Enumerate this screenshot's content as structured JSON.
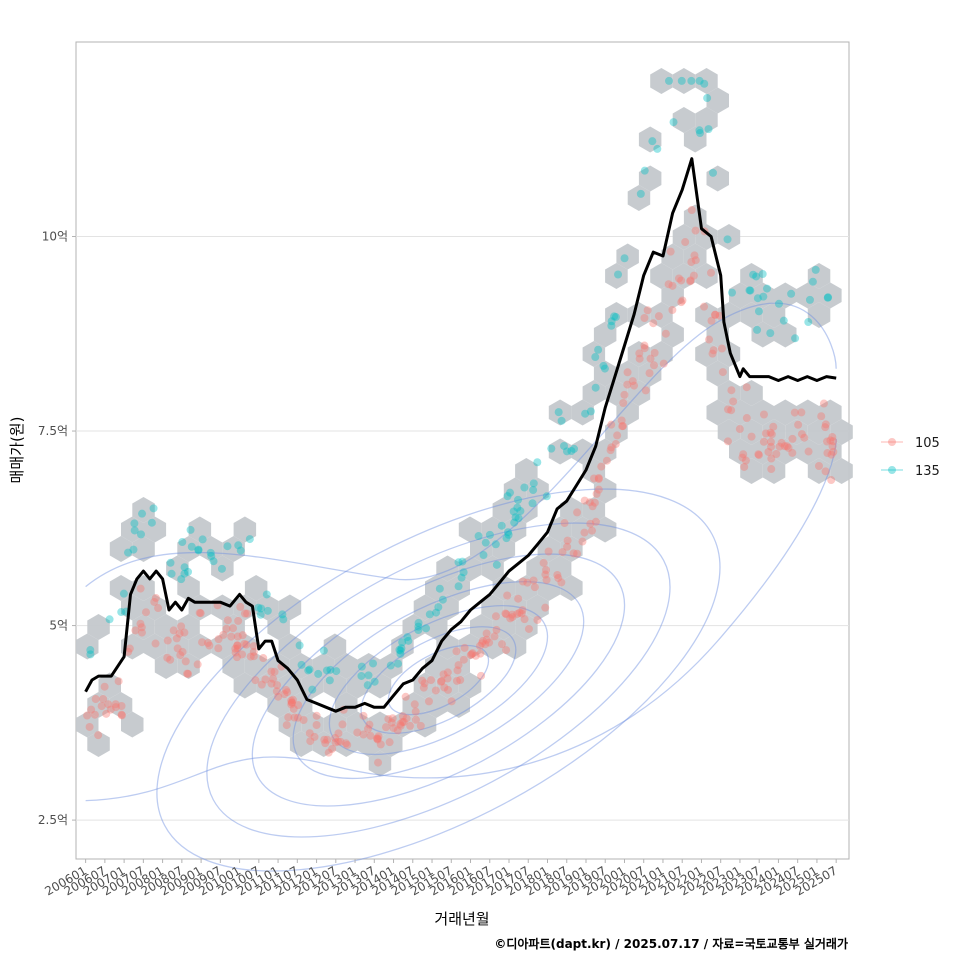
{
  "chart_data": {
    "type": "scatter",
    "title": "",
    "xlabel": "거래년월",
    "ylabel": "매매가(원)",
    "caption": "©디아파트(dapt.kr) / 2025.07.17 / 자료=국토교통부 실거래가",
    "x_ticks": [
      "200601",
      "200607",
      "200701",
      "200707",
      "200801",
      "200807",
      "200901",
      "200907",
      "201001",
      "201007",
      "201101",
      "201107",
      "201201",
      "201207",
      "201301",
      "201307",
      "201401",
      "201407",
      "201501",
      "201507",
      "201601",
      "201607",
      "201701",
      "201707",
      "201801",
      "201807",
      "201901",
      "201907",
      "202001",
      "202007",
      "202101",
      "202107",
      "202201",
      "202207",
      "202301",
      "202307",
      "202401",
      "202407",
      "202501",
      "202507"
    ],
    "y_ticks": [
      {
        "value": 2.5,
        "label": "2.5억"
      },
      {
        "value": 5,
        "label": "5억"
      },
      {
        "value": 7.5,
        "label": "7.5억"
      },
      {
        "value": 10,
        "label": "10억"
      }
    ],
    "ylim": [
      2.0,
      12.5
    ],
    "xlim": [
      "2005-10",
      "2025-11"
    ],
    "legend": {
      "position": "right",
      "entries": [
        {
          "name": "105",
          "color": "#f8766d"
        },
        {
          "name": "135",
          "color": "#00bfc4"
        }
      ]
    },
    "grid": true,
    "median_line": {
      "color": "#000000",
      "x": [
        "2006-01",
        "2006-03",
        "2006-05",
        "2006-09",
        "2007-01",
        "2007-03",
        "2007-05",
        "2007-07",
        "2007-09",
        "2007-11",
        "2008-01",
        "2008-03",
        "2008-05",
        "2008-07",
        "2008-09",
        "2008-11",
        "2009-01",
        "2009-04",
        "2009-07",
        "2009-10",
        "2010-01",
        "2010-03",
        "2010-05",
        "2010-07",
        "2010-09",
        "2010-11",
        "2011-01",
        "2011-04",
        "2011-07",
        "2011-10",
        "2012-01",
        "2012-04",
        "2012-07",
        "2012-10",
        "2013-01",
        "2013-04",
        "2013-07",
        "2013-10",
        "2014-01",
        "2014-04",
        "2014-07",
        "2014-10",
        "2015-01",
        "2015-04",
        "2015-07",
        "2015-10",
        "2016-01",
        "2016-04",
        "2016-07",
        "2016-10",
        "2017-01",
        "2017-04",
        "2017-07",
        "2017-10",
        "2018-01",
        "2018-04",
        "2018-07",
        "2018-10",
        "2019-01",
        "2019-04",
        "2019-07",
        "2019-10",
        "2020-01",
        "2020-04",
        "2020-07",
        "2020-10",
        "2021-01",
        "2021-04",
        "2021-07",
        "2021-10",
        "2022-01",
        "2022-04",
        "2022-07",
        "2022-08",
        "2022-10",
        "2023-01",
        "2023-02",
        "2023-04",
        "2023-07",
        "2023-10",
        "2024-01",
        "2024-04",
        "2024-07",
        "2024-10",
        "2025-01",
        "2025-04",
        "2025-07"
      ],
      "y": [
        4.15,
        4.3,
        4.35,
        4.35,
        4.6,
        5.4,
        5.6,
        5.7,
        5.6,
        5.7,
        5.6,
        5.2,
        5.3,
        5.2,
        5.35,
        5.3,
        5.3,
        5.3,
        5.3,
        5.25,
        5.4,
        5.3,
        5.25,
        4.7,
        4.8,
        4.8,
        4.55,
        4.45,
        4.3,
        4.05,
        4.0,
        3.95,
        3.9,
        3.95,
        3.95,
        4.0,
        3.95,
        3.95,
        4.1,
        4.25,
        4.3,
        4.45,
        4.55,
        4.8,
        4.95,
        5.05,
        5.2,
        5.3,
        5.4,
        5.55,
        5.7,
        5.8,
        5.9,
        6.05,
        6.2,
        6.5,
        6.6,
        6.8,
        7.0,
        7.3,
        7.8,
        8.2,
        8.6,
        9.0,
        9.5,
        9.8,
        9.75,
        10.3,
        10.6,
        11.0,
        10.1,
        10.0,
        9.5,
        8.9,
        8.5,
        8.2,
        8.3,
        8.2,
        8.2,
        8.2,
        8.15,
        8.2,
        8.15,
        8.2,
        8.15,
        8.2,
        8.18
      ]
    }
  }
}
